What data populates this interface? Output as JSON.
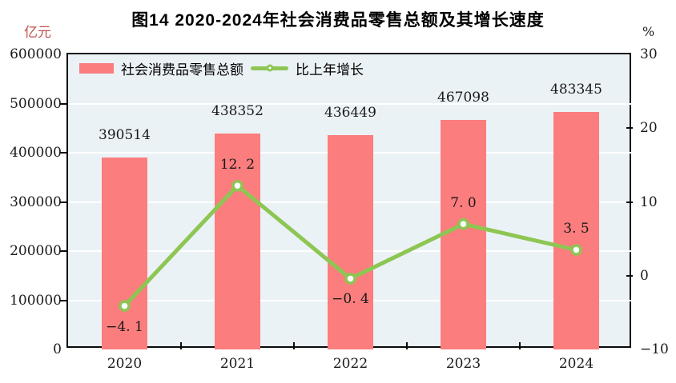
{
  "title": "图14  2020-2024年社会消费品零售总额及其增长速度",
  "left_axis_unit": "亿元",
  "right_axis_unit": "%",
  "legend": {
    "bar_label": "社会消费品零售总额",
    "line_label": "比上年增长"
  },
  "colors": {
    "bar": "#fb7d7d",
    "line": "#8dc653",
    "marker_fill": "#ffffff",
    "plot_bg": "#ebf2f6",
    "gridline": "#ffffff",
    "axis": "#0a0a0a",
    "text": "#1a1a1a",
    "unit_left_text": "#c0504d"
  },
  "chart_data": {
    "type": "combo: bar (left axis) + line (right axis)",
    "title": "图14  2020-2024年社会消费品零售总额及其增长速度",
    "categories": [
      "2020",
      "2021",
      "2022",
      "2023",
      "2024"
    ],
    "series": [
      {
        "name": "社会消费品零售总额",
        "type": "bar",
        "axis": "left",
        "unit": "亿元",
        "values": [
          390514,
          438352,
          436449,
          467098,
          483345
        ],
        "data_labels": [
          "390514",
          "438352",
          "436449",
          "467098",
          "483345"
        ]
      },
      {
        "name": "比上年增长",
        "type": "line",
        "axis": "right",
        "unit": "%",
        "values": [
          -4.1,
          12.2,
          -0.4,
          7.0,
          3.5
        ],
        "data_labels": [
          "−4. 1",
          "12. 2",
          "−0. 4",
          "7. 0",
          "3. 5"
        ],
        "label_positions": [
          "below",
          "above",
          "below",
          "above",
          "above"
        ]
      }
    ],
    "left_axis": {
      "min": 0,
      "max": 600000,
      "tick_step": 100000,
      "tick_labels": [
        "0",
        "100000",
        "200000",
        "300000",
        "400000",
        "500000",
        "600000"
      ]
    },
    "right_axis": {
      "min": -10,
      "max": 30,
      "tick_step": 10,
      "tick_labels": [
        "−10",
        "0",
        "10",
        "20",
        "30"
      ]
    },
    "grid": {
      "horizontal_gridlines": true,
      "gridline_color": "white",
      "at_every_left_axis_step": true
    },
    "legend_position": "top-left inside plot"
  }
}
